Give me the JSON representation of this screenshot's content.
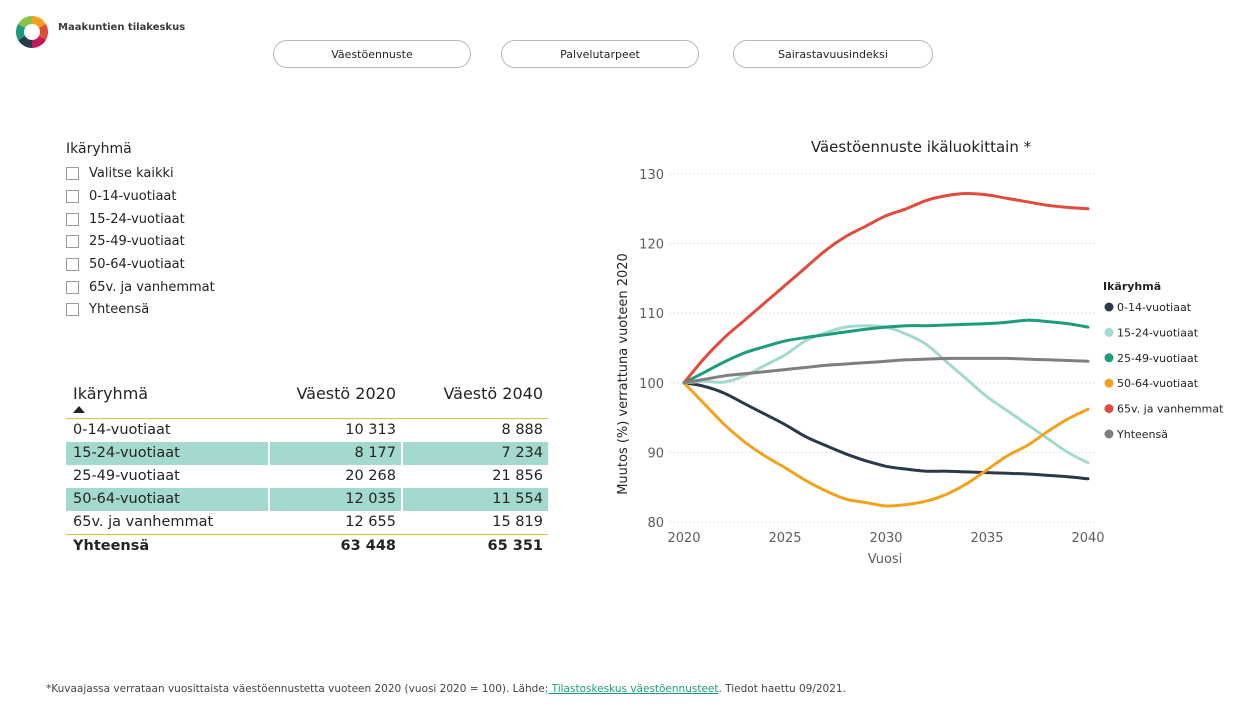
{
  "logo": {
    "text": "Maakuntien tilakeskus"
  },
  "nav": [
    {
      "label": "Väestöennuste"
    },
    {
      "label": "Palvelutarpeet"
    },
    {
      "label": "Sairastavuusindeksi"
    }
  ],
  "slicer": {
    "title": "Ikäryhmä",
    "items": [
      "Valitse kaikki",
      "0-14-vuotiaat",
      "15-24-vuotiaat",
      "25-49-vuotiaat",
      "50-64-vuotiaat",
      "65v. ja vanhemmat",
      "Yhteensä"
    ]
  },
  "table": {
    "headers": [
      "Ikäryhmä",
      "Väestö 2020",
      "Väestö 2040"
    ],
    "rows": [
      {
        "group": "0-14-vuotiaat",
        "v2020": "10 313",
        "v2040": "8 888",
        "shaded": false
      },
      {
        "group": "15-24-vuotiaat",
        "v2020": "8 177",
        "v2040": "7 234",
        "shaded": true
      },
      {
        "group": "25-49-vuotiaat",
        "v2020": "20 268",
        "v2040": "21 856",
        "shaded": false
      },
      {
        "group": "50-64-vuotiaat",
        "v2020": "12 035",
        "v2040": "11 554",
        "shaded": true
      },
      {
        "group": "65v. ja vanhemmat",
        "v2020": "12 655",
        "v2040": "15 819",
        "shaded": false
      }
    ],
    "total": {
      "group": "Yhteensä",
      "v2020": "63 448",
      "v2040": "65 351"
    }
  },
  "chart_data": {
    "type": "line",
    "title": "Väestöennuste ikäluokittain *",
    "xlabel": "Vuosi",
    "ylabel": "Muutos (%) verrattuna vuoteen 2020",
    "xlim": [
      2020,
      2040
    ],
    "ylim": [
      80,
      130
    ],
    "xticks": [
      2020,
      2025,
      2030,
      2035,
      2040
    ],
    "yticks": [
      80,
      90,
      100,
      110,
      120,
      130
    ],
    "grid": "horizontal-dotted",
    "legend": {
      "title": "Ikäryhmä",
      "placement": "right"
    },
    "x": [
      2020,
      2021,
      2022,
      2023,
      2024,
      2025,
      2026,
      2027,
      2028,
      2029,
      2030,
      2031,
      2032,
      2033,
      2034,
      2035,
      2036,
      2037,
      2038,
      2039,
      2040
    ],
    "series": [
      {
        "name": "0-14-vuotiaat",
        "color": "#2b3a4a",
        "values": [
          100,
          99.5,
          98.5,
          97,
          95.5,
          94,
          92.3,
          91,
          89.8,
          88.8,
          88,
          87.6,
          87.3,
          87.3,
          87.2,
          87.1,
          87,
          86.9,
          86.7,
          86.5,
          86.2
        ]
      },
      {
        "name": "15-24-vuotiaat",
        "color": "#a3d9cf",
        "values": [
          100,
          100.2,
          100.1,
          101,
          102.5,
          104,
          106,
          107.2,
          108,
          108.2,
          108,
          107,
          105.5,
          103,
          100.5,
          98,
          96,
          94,
          92,
          90,
          88.5
        ]
      },
      {
        "name": "25-49-vuotiaat",
        "color": "#1c9c7c",
        "values": [
          100,
          101.5,
          103,
          104.3,
          105.2,
          106,
          106.5,
          106.9,
          107.3,
          107.7,
          108,
          108.2,
          108.2,
          108.3,
          108.4,
          108.5,
          108.7,
          109,
          108.8,
          108.5,
          108
        ]
      },
      {
        "name": "50-64-vuotiaat",
        "color": "#f2a21c",
        "values": [
          100,
          97,
          94,
          91.5,
          89.5,
          87.8,
          86,
          84.5,
          83.3,
          82.8,
          82.3,
          82.5,
          83,
          84,
          85.5,
          87.5,
          89.5,
          91,
          93,
          94.8,
          96.2
        ]
      },
      {
        "name": "65v. ja vanhemmat",
        "color": "#e04b3c",
        "values": [
          100,
          103.5,
          106.5,
          109,
          111.5,
          114,
          116.5,
          119,
          121,
          122.5,
          124,
          125,
          126.2,
          126.9,
          127.2,
          127,
          126.5,
          126,
          125.5,
          125.2,
          125
        ]
      },
      {
        "name": "Yhteensä",
        "color": "#7f7f7f",
        "values": [
          100,
          100.5,
          101,
          101.3,
          101.6,
          101.9,
          102.2,
          102.5,
          102.7,
          102.9,
          103.1,
          103.3,
          103.4,
          103.5,
          103.5,
          103.5,
          103.5,
          103.4,
          103.3,
          103.2,
          103.1
        ]
      }
    ]
  },
  "footnote": {
    "before": "*Kuvaajassa verrataan vuosittaista väestöennustetta vuoteen 2020 (vuosi 2020 = 100). Lähde:",
    "link": " Tilastoskeskus väestöennusteet",
    "after": ". Tiedot haettu 09/2021."
  }
}
